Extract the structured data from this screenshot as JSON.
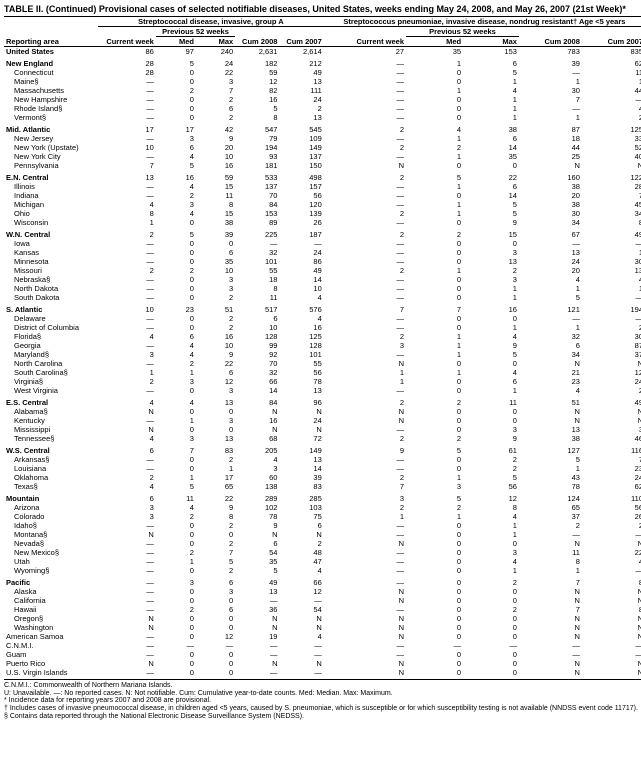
{
  "title": "TABLE II. (Continued) Provisional cases of selected notifiable diseases, United States, weeks ending May 24, 2008, and May 26, 2007 (21st Week)*",
  "disease1": "Streptococcal disease, invasive, group A",
  "disease2": "Streptococcus pneumoniae, invasive disease, nondrug resistant† Age <5 years",
  "hdr": {
    "area": "Reporting area",
    "current": "Current week",
    "previous": "Previous 52 weeks",
    "med": "Med",
    "max": "Max",
    "cum1": "Cum 2008",
    "cum2": "Cum 2007"
  },
  "groups": [
    {
      "name": "United States",
      "bold": true,
      "sub": false,
      "d1": [
        "86",
        "97",
        "240",
        "2,631",
        "2,614"
      ],
      "d2": [
        "27",
        "35",
        "153",
        "783",
        "835"
      ]
    },
    {
      "name": "New England",
      "bold": true,
      "sub": false,
      "d1": [
        "28",
        "5",
        "24",
        "182",
        "212"
      ],
      "d2": [
        "—",
        "1",
        "6",
        "39",
        "62"
      ]
    },
    {
      "name": "Connecticut",
      "bold": false,
      "sub": true,
      "d1": [
        "28",
        "0",
        "22",
        "59",
        "49"
      ],
      "d2": [
        "—",
        "0",
        "5",
        "—",
        "11"
      ]
    },
    {
      "name": "Maine§",
      "bold": false,
      "sub": true,
      "d1": [
        "—",
        "0",
        "3",
        "12",
        "13"
      ],
      "d2": [
        "—",
        "0",
        "1",
        "1",
        "1"
      ]
    },
    {
      "name": "Massachusetts",
      "bold": false,
      "sub": true,
      "d1": [
        "—",
        "2",
        "7",
        "82",
        "111"
      ],
      "d2": [
        "—",
        "1",
        "4",
        "30",
        "44"
      ]
    },
    {
      "name": "New Hampshire",
      "bold": false,
      "sub": true,
      "d1": [
        "—",
        "0",
        "2",
        "16",
        "24"
      ],
      "d2": [
        "—",
        "0",
        "1",
        "7",
        "—"
      ]
    },
    {
      "name": "Rhode Island§",
      "bold": false,
      "sub": true,
      "d1": [
        "—",
        "0",
        "6",
        "5",
        "2"
      ],
      "d2": [
        "—",
        "0",
        "1",
        "—",
        "4"
      ]
    },
    {
      "name": "Vermont§",
      "bold": false,
      "sub": true,
      "d1": [
        "—",
        "0",
        "2",
        "8",
        "13"
      ],
      "d2": [
        "—",
        "0",
        "1",
        "1",
        "2"
      ]
    },
    {
      "name": "Mid. Atlantic",
      "bold": true,
      "sub": false,
      "d1": [
        "17",
        "17",
        "42",
        "547",
        "545"
      ],
      "d2": [
        "2",
        "4",
        "38",
        "87",
        "125"
      ]
    },
    {
      "name": "New Jersey",
      "bold": false,
      "sub": true,
      "d1": [
        "—",
        "3",
        "9",
        "79",
        "109"
      ],
      "d2": [
        "—",
        "1",
        "6",
        "18",
        "33"
      ]
    },
    {
      "name": "New York (Upstate)",
      "bold": false,
      "sub": true,
      "d1": [
        "10",
        "6",
        "20",
        "194",
        "149"
      ],
      "d2": [
        "2",
        "2",
        "14",
        "44",
        "52"
      ]
    },
    {
      "name": "New York City",
      "bold": false,
      "sub": true,
      "d1": [
        "—",
        "4",
        "10",
        "93",
        "137"
      ],
      "d2": [
        "—",
        "1",
        "35",
        "25",
        "40"
      ]
    },
    {
      "name": "Pennsylvania",
      "bold": false,
      "sub": true,
      "d1": [
        "7",
        "5",
        "16",
        "181",
        "150"
      ],
      "d2": [
        "N",
        "0",
        "0",
        "N",
        "N"
      ]
    },
    {
      "name": "E.N. Central",
      "bold": true,
      "sub": false,
      "d1": [
        "13",
        "16",
        "59",
        "533",
        "498"
      ],
      "d2": [
        "2",
        "5",
        "22",
        "160",
        "122"
      ]
    },
    {
      "name": "Illinois",
      "bold": false,
      "sub": true,
      "d1": [
        "—",
        "4",
        "15",
        "137",
        "157"
      ],
      "d2": [
        "—",
        "1",
        "6",
        "38",
        "28"
      ]
    },
    {
      "name": "Indiana",
      "bold": false,
      "sub": true,
      "d1": [
        "—",
        "2",
        "11",
        "70",
        "56"
      ],
      "d2": [
        "—",
        "0",
        "14",
        "20",
        "7"
      ]
    },
    {
      "name": "Michigan",
      "bold": false,
      "sub": true,
      "d1": [
        "4",
        "3",
        "8",
        "84",
        "120"
      ],
      "d2": [
        "—",
        "1",
        "5",
        "38",
        "45"
      ]
    },
    {
      "name": "Ohio",
      "bold": false,
      "sub": true,
      "d1": [
        "8",
        "4",
        "15",
        "153",
        "139"
      ],
      "d2": [
        "2",
        "1",
        "5",
        "30",
        "34"
      ]
    },
    {
      "name": "Wisconsin",
      "bold": false,
      "sub": true,
      "d1": [
        "1",
        "0",
        "38",
        "89",
        "26"
      ],
      "d2": [
        "—",
        "0",
        "9",
        "34",
        "8"
      ]
    },
    {
      "name": "W.N. Central",
      "bold": true,
      "sub": false,
      "d1": [
        "2",
        "5",
        "39",
        "225",
        "187"
      ],
      "d2": [
        "2",
        "2",
        "15",
        "67",
        "49"
      ]
    },
    {
      "name": "Iowa",
      "bold": false,
      "sub": true,
      "d1": [
        "—",
        "0",
        "0",
        "—",
        "—"
      ],
      "d2": [
        "—",
        "0",
        "0",
        "—",
        "—"
      ]
    },
    {
      "name": "Kansas",
      "bold": false,
      "sub": true,
      "d1": [
        "—",
        "0",
        "6",
        "32",
        "24"
      ],
      "d2": [
        "—",
        "0",
        "3",
        "13",
        "1"
      ]
    },
    {
      "name": "Minnesota",
      "bold": false,
      "sub": true,
      "d1": [
        "—",
        "0",
        "35",
        "101",
        "86"
      ],
      "d2": [
        "—",
        "0",
        "13",
        "24",
        "30"
      ]
    },
    {
      "name": "Missouri",
      "bold": false,
      "sub": true,
      "d1": [
        "2",
        "2",
        "10",
        "55",
        "49"
      ],
      "d2": [
        "2",
        "1",
        "2",
        "20",
        "13"
      ]
    },
    {
      "name": "Nebraska§",
      "bold": false,
      "sub": true,
      "d1": [
        "—",
        "0",
        "3",
        "18",
        "14"
      ],
      "d2": [
        "—",
        "0",
        "3",
        "4",
        "4"
      ]
    },
    {
      "name": "North Dakota",
      "bold": false,
      "sub": true,
      "d1": [
        "—",
        "0",
        "3",
        "8",
        "10"
      ],
      "d2": [
        "—",
        "0",
        "1",
        "1",
        "1"
      ]
    },
    {
      "name": "South Dakota",
      "bold": false,
      "sub": true,
      "d1": [
        "—",
        "0",
        "2",
        "11",
        "4"
      ],
      "d2": [
        "—",
        "0",
        "1",
        "5",
        "—"
      ]
    },
    {
      "name": "S. Atlantic",
      "bold": true,
      "sub": false,
      "d1": [
        "10",
        "23",
        "51",
        "517",
        "576"
      ],
      "d2": [
        "7",
        "7",
        "16",
        "121",
        "194"
      ]
    },
    {
      "name": "Delaware",
      "bold": false,
      "sub": true,
      "d1": [
        "—",
        "0",
        "2",
        "6",
        "4"
      ],
      "d2": [
        "—",
        "0",
        "0",
        "—",
        "—"
      ]
    },
    {
      "name": "District of Columbia",
      "bold": false,
      "sub": true,
      "d1": [
        "—",
        "0",
        "2",
        "10",
        "16"
      ],
      "d2": [
        "—",
        "0",
        "1",
        "1",
        "2"
      ]
    },
    {
      "name": "Florida§",
      "bold": false,
      "sub": true,
      "d1": [
        "4",
        "6",
        "16",
        "128",
        "125"
      ],
      "d2": [
        "2",
        "1",
        "4",
        "32",
        "30"
      ]
    },
    {
      "name": "Georgia",
      "bold": false,
      "sub": true,
      "d1": [
        "—",
        "4",
        "10",
        "99",
        "128"
      ],
      "d2": [
        "3",
        "1",
        "9",
        "6",
        "87"
      ]
    },
    {
      "name": "Maryland§",
      "bold": false,
      "sub": true,
      "d1": [
        "3",
        "4",
        "9",
        "92",
        "101"
      ],
      "d2": [
        "—",
        "1",
        "5",
        "34",
        "37"
      ]
    },
    {
      "name": "North Carolina",
      "bold": false,
      "sub": true,
      "d1": [
        "—",
        "2",
        "22",
        "70",
        "55"
      ],
      "d2": [
        "N",
        "0",
        "0",
        "N",
        "N"
      ]
    },
    {
      "name": "South Carolina§",
      "bold": false,
      "sub": true,
      "d1": [
        "1",
        "1",
        "6",
        "32",
        "56"
      ],
      "d2": [
        "1",
        "1",
        "4",
        "21",
        "12"
      ]
    },
    {
      "name": "Virginia§",
      "bold": false,
      "sub": true,
      "d1": [
        "2",
        "3",
        "12",
        "66",
        "78"
      ],
      "d2": [
        "1",
        "0",
        "6",
        "23",
        "24"
      ]
    },
    {
      "name": "West Virginia",
      "bold": false,
      "sub": true,
      "d1": [
        "—",
        "0",
        "3",
        "14",
        "13"
      ],
      "d2": [
        "—",
        "0",
        "1",
        "4",
        "2"
      ]
    },
    {
      "name": "E.S. Central",
      "bold": true,
      "sub": false,
      "d1": [
        "4",
        "4",
        "13",
        "84",
        "96"
      ],
      "d2": [
        "2",
        "2",
        "11",
        "51",
        "49"
      ]
    },
    {
      "name": "Alabama§",
      "bold": false,
      "sub": true,
      "d1": [
        "N",
        "0",
        "0",
        "N",
        "N"
      ],
      "d2": [
        "N",
        "0",
        "0",
        "N",
        "N"
      ]
    },
    {
      "name": "Kentucky",
      "bold": false,
      "sub": true,
      "d1": [
        "—",
        "1",
        "3",
        "16",
        "24"
      ],
      "d2": [
        "N",
        "0",
        "0",
        "N",
        "N"
      ]
    },
    {
      "name": "Mississippi",
      "bold": false,
      "sub": true,
      "d1": [
        "N",
        "0",
        "0",
        "N",
        "N"
      ],
      "d2": [
        "—",
        "0",
        "3",
        "13",
        "3"
      ]
    },
    {
      "name": "Tennessee§",
      "bold": false,
      "sub": true,
      "d1": [
        "4",
        "3",
        "13",
        "68",
        "72"
      ],
      "d2": [
        "2",
        "2",
        "9",
        "38",
        "46"
      ]
    },
    {
      "name": "W.S. Central",
      "bold": true,
      "sub": false,
      "d1": [
        "6",
        "7",
        "83",
        "205",
        "149"
      ],
      "d2": [
        "9",
        "5",
        "61",
        "127",
        "116"
      ]
    },
    {
      "name": "Arkansas§",
      "bold": false,
      "sub": true,
      "d1": [
        "—",
        "0",
        "2",
        "4",
        "13"
      ],
      "d2": [
        "—",
        "0",
        "2",
        "5",
        "7"
      ]
    },
    {
      "name": "Louisiana",
      "bold": false,
      "sub": true,
      "d1": [
        "—",
        "0",
        "1",
        "3",
        "14"
      ],
      "d2": [
        "—",
        "0",
        "2",
        "1",
        "23"
      ]
    },
    {
      "name": "Oklahoma",
      "bold": false,
      "sub": true,
      "d1": [
        "2",
        "1",
        "17",
        "60",
        "39"
      ],
      "d2": [
        "2",
        "1",
        "5",
        "43",
        "24"
      ]
    },
    {
      "name": "Texas§",
      "bold": false,
      "sub": true,
      "d1": [
        "4",
        "5",
        "65",
        "138",
        "83"
      ],
      "d2": [
        "7",
        "3",
        "56",
        "78",
        "62"
      ]
    },
    {
      "name": "Mountain",
      "bold": true,
      "sub": false,
      "d1": [
        "6",
        "11",
        "22",
        "289",
        "285"
      ],
      "d2": [
        "3",
        "5",
        "12",
        "124",
        "110"
      ]
    },
    {
      "name": "Arizona",
      "bold": false,
      "sub": true,
      "d1": [
        "3",
        "4",
        "9",
        "102",
        "103"
      ],
      "d2": [
        "2",
        "2",
        "8",
        "65",
        "56"
      ]
    },
    {
      "name": "Colorado",
      "bold": false,
      "sub": true,
      "d1": [
        "3",
        "2",
        "8",
        "78",
        "75"
      ],
      "d2": [
        "1",
        "1",
        "4",
        "37",
        "26"
      ]
    },
    {
      "name": "Idaho§",
      "bold": false,
      "sub": true,
      "d1": [
        "—",
        "0",
        "2",
        "9",
        "6"
      ],
      "d2": [
        "—",
        "0",
        "1",
        "2",
        "2"
      ]
    },
    {
      "name": "Montana§",
      "bold": false,
      "sub": true,
      "d1": [
        "N",
        "0",
        "0",
        "N",
        "N"
      ],
      "d2": [
        "—",
        "0",
        "1",
        "—",
        "—"
      ]
    },
    {
      "name": "Nevada§",
      "bold": false,
      "sub": true,
      "d1": [
        "—",
        "0",
        "2",
        "6",
        "2"
      ],
      "d2": [
        "N",
        "0",
        "0",
        "N",
        "N"
      ]
    },
    {
      "name": "New Mexico§",
      "bold": false,
      "sub": true,
      "d1": [
        "—",
        "2",
        "7",
        "54",
        "48"
      ],
      "d2": [
        "—",
        "0",
        "3",
        "11",
        "22"
      ]
    },
    {
      "name": "Utah",
      "bold": false,
      "sub": true,
      "d1": [
        "—",
        "1",
        "5",
        "35",
        "47"
      ],
      "d2": [
        "—",
        "0",
        "4",
        "8",
        "4"
      ]
    },
    {
      "name": "Wyoming§",
      "bold": false,
      "sub": true,
      "d1": [
        "—",
        "0",
        "2",
        "5",
        "4"
      ],
      "d2": [
        "—",
        "0",
        "1",
        "1",
        "—"
      ]
    },
    {
      "name": "Pacific",
      "bold": true,
      "sub": false,
      "d1": [
        "—",
        "3",
        "6",
        "49",
        "66"
      ],
      "d2": [
        "—",
        "0",
        "2",
        "7",
        "8"
      ]
    },
    {
      "name": "Alaska",
      "bold": false,
      "sub": true,
      "d1": [
        "—",
        "0",
        "3",
        "13",
        "12"
      ],
      "d2": [
        "N",
        "0",
        "0",
        "N",
        "N"
      ]
    },
    {
      "name": "California",
      "bold": false,
      "sub": true,
      "d1": [
        "—",
        "0",
        "0",
        "—",
        "—"
      ],
      "d2": [
        "N",
        "0",
        "0",
        "N",
        "N"
      ]
    },
    {
      "name": "Hawaii",
      "bold": false,
      "sub": true,
      "d1": [
        "—",
        "2",
        "6",
        "36",
        "54"
      ],
      "d2": [
        "—",
        "0",
        "2",
        "7",
        "8"
      ]
    },
    {
      "name": "Oregon§",
      "bold": false,
      "sub": true,
      "d1": [
        "N",
        "0",
        "0",
        "N",
        "N"
      ],
      "d2": [
        "N",
        "0",
        "0",
        "N",
        "N"
      ]
    },
    {
      "name": "Washington",
      "bold": false,
      "sub": true,
      "d1": [
        "N",
        "0",
        "0",
        "N",
        "N"
      ],
      "d2": [
        "N",
        "0",
        "0",
        "N",
        "N"
      ]
    },
    {
      "name": "American Samoa",
      "bold": false,
      "sub": false,
      "d1": [
        "—",
        "0",
        "12",
        "19",
        "4"
      ],
      "d2": [
        "N",
        "0",
        "0",
        "N",
        "N"
      ]
    },
    {
      "name": "C.N.M.I.",
      "bold": false,
      "sub": false,
      "d1": [
        "—",
        "—",
        "—",
        "—",
        "—"
      ],
      "d2": [
        "—",
        "—",
        "—",
        "—",
        "—"
      ]
    },
    {
      "name": "Guam",
      "bold": false,
      "sub": false,
      "d1": [
        "—",
        "0",
        "0",
        "—",
        "—"
      ],
      "d2": [
        "—",
        "0",
        "0",
        "—",
        "—"
      ]
    },
    {
      "name": "Puerto Rico",
      "bold": false,
      "sub": false,
      "d1": [
        "N",
        "0",
        "0",
        "N",
        "N"
      ],
      "d2": [
        "N",
        "0",
        "0",
        "N",
        "N"
      ]
    },
    {
      "name": "U.S. Virgin Islands",
      "bold": false,
      "sub": false,
      "d1": [
        "—",
        "0",
        "0",
        "—",
        "—"
      ],
      "d2": [
        "N",
        "0",
        "0",
        "N",
        "N"
      ]
    }
  ],
  "footnotes": {
    "l1": "C.N.M.I.: Commonwealth of Northern Mariana Islands.",
    "l2": "U: Unavailable.   —: No reported cases.   N: Not notifiable.   Cum: Cumulative year-to-date counts.   Med: Median.   Max: Maximum.",
    "l3": "* Incidence data for reporting years 2007 and 2008 are provisional.",
    "l4": "† Includes cases of invasive pneumococcal disease, in children aged <5 years, caused by S. pneumoniae, which is susceptible or for which susceptibility testing is not available (NNDSS event code 11717).",
    "l5": "§ Contains data reported through the National Electronic Disease Surveillance System (NEDSS)."
  }
}
